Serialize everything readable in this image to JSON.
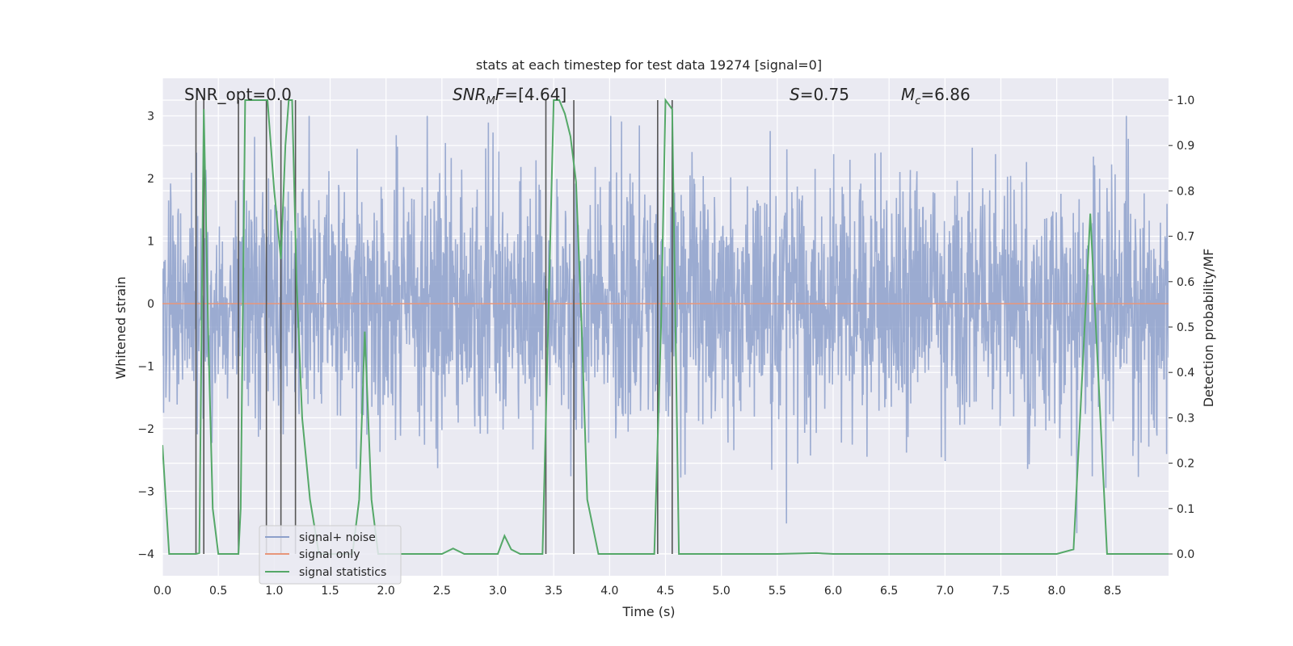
{
  "chart_data": {
    "type": "line",
    "title": "stats at each timestep for test data 19274 [signal=0]",
    "xlabel": "Time (s)",
    "ylabel_left": "Whitened strain",
    "ylabel_right": "Detection probability/MF",
    "xlim": [
      0,
      9
    ],
    "ylim_left": [
      -4.35,
      3.6
    ],
    "ylim_right": [
      -0.048,
      1.048
    ],
    "x_ticks": [
      "0.0",
      "0.5",
      "1.0",
      "1.5",
      "2.0",
      "2.5",
      "3.0",
      "3.5",
      "4.0",
      "4.5",
      "5.0",
      "5.5",
      "6.0",
      "6.5",
      "7.0",
      "7.5",
      "8.0",
      "8.5"
    ],
    "y_ticks_left": [
      "−4",
      "−3",
      "−2",
      "−1",
      "0",
      "1",
      "2",
      "3"
    ],
    "y_ticks_right": [
      "0.0",
      "0.1",
      "0.2",
      "0.3",
      "0.4",
      "0.5",
      "0.6",
      "0.7",
      "0.8",
      "0.9",
      "1.0"
    ],
    "grid": true,
    "legend_position": "lower-left",
    "annotations": {
      "snr_opt": "SNR_opt=0.0",
      "snr_mf": "[4.64]",
      "s_val": "=0.75",
      "mc_val": "=6.86"
    },
    "series": [
      {
        "name": "signal+ noise",
        "color": "#8da0cb",
        "axis": "left",
        "description": "noise-dominated whitened strain, amplitude roughly within ±2.5"
      },
      {
        "name": "signal only",
        "color": "#e8967a",
        "axis": "left",
        "x": [
          0,
          9
        ],
        "y": [
          0,
          0
        ]
      },
      {
        "name": "signal statistics",
        "color": "#55a868",
        "axis": "right",
        "x": [
          0.0,
          0.06,
          0.2,
          0.3,
          0.33,
          0.37,
          0.41,
          0.45,
          0.5,
          0.6,
          0.68,
          0.7,
          0.74,
          0.8,
          0.9,
          0.94,
          1.0,
          1.06,
          1.1,
          1.13,
          1.16,
          1.2,
          1.25,
          1.32,
          1.4,
          1.5,
          1.6,
          1.7,
          1.76,
          1.81,
          1.87,
          1.93,
          2.0,
          2.2,
          2.4,
          2.5,
          2.6,
          2.7,
          2.8,
          2.9,
          3.0,
          3.06,
          3.12,
          3.2,
          3.3,
          3.4,
          3.45,
          3.5,
          3.55,
          3.6,
          3.65,
          3.7,
          3.75,
          3.8,
          3.9,
          4.0,
          4.2,
          4.4,
          4.46,
          4.5,
          4.56,
          4.62,
          4.7,
          5.0,
          5.5,
          5.85,
          6.0,
          6.5,
          7.0,
          7.5,
          8.0,
          8.15,
          8.3,
          8.45,
          8.5,
          8.7,
          9.0
        ],
        "y": [
          0.24,
          0.0,
          0.0,
          0.0,
          0.002,
          0.98,
          0.48,
          0.1,
          0.0,
          0.0,
          0.0,
          0.1,
          1.0,
          1.0,
          1.0,
          1.0,
          0.8,
          0.65,
          0.9,
          1.0,
          1.0,
          0.6,
          0.3,
          0.12,
          0.0,
          0.0,
          0.0,
          0.0,
          0.12,
          0.49,
          0.12,
          0.0,
          0.0,
          0.0,
          0.0,
          0.0,
          0.012,
          0.0,
          0.0,
          0.0,
          0.0,
          0.04,
          0.01,
          0.0,
          0.0,
          0.0,
          0.5,
          1.0,
          1.0,
          0.97,
          0.92,
          0.82,
          0.5,
          0.12,
          0.0,
          0.0,
          0.0,
          0.0,
          0.5,
          1.0,
          0.98,
          0.0,
          0.0,
          0.0,
          0.0,
          0.002,
          0.0,
          0.0,
          0.0,
          0.0,
          0.0,
          0.01,
          0.75,
          0.0,
          0.0,
          0.0,
          0.0
        ]
      }
    ],
    "vertical_markers": [
      0.3,
      0.37,
      0.68,
      0.93,
      1.06,
      1.19,
      3.43,
      3.68,
      4.43,
      4.56
    ]
  }
}
